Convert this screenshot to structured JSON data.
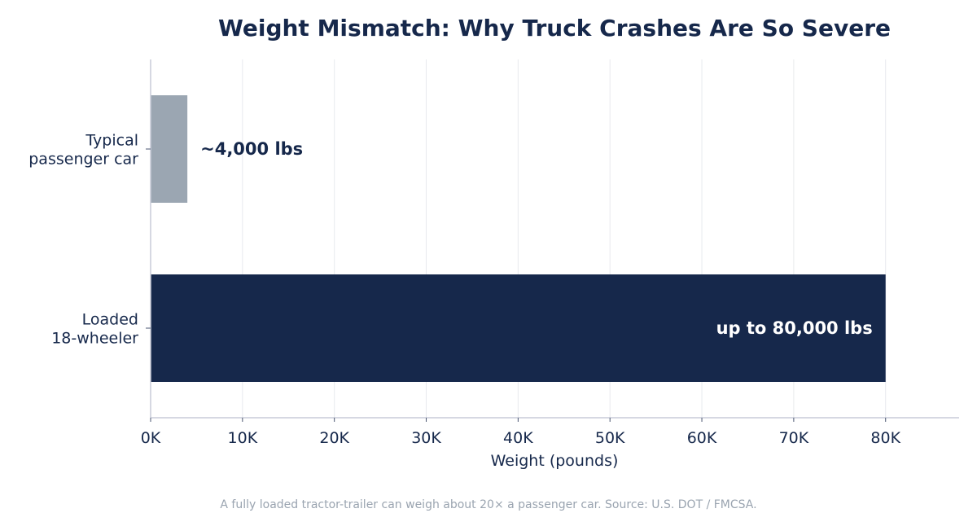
{
  "chart_data": {
    "type": "bar",
    "orientation": "horizontal",
    "title": "Weight Mismatch: Why Truck Crashes Are So Severe",
    "xlabel": "Weight (pounds)",
    "ylabel": "",
    "xlim": [
      0,
      88000
    ],
    "x_ticks": [
      0,
      10000,
      20000,
      30000,
      40000,
      50000,
      60000,
      70000,
      80000
    ],
    "x_tick_labels": [
      "0K",
      "10K",
      "20K",
      "30K",
      "40K",
      "50K",
      "60K",
      "70K",
      "80K"
    ],
    "grid": true,
    "categories": [
      [
        "Typical",
        "passenger car"
      ],
      [
        "Loaded",
        "18-wheeler"
      ]
    ],
    "values": [
      4000,
      80000
    ],
    "bar_colors": [
      "#9ba6b2",
      "#16284b"
    ],
    "data_labels": [
      "~4,000 lbs",
      "up to 80,000 lbs"
    ],
    "data_label_colors": [
      "#16284b",
      "#ffffff"
    ],
    "footnote": "A fully loaded tractor-trailer can weigh about 20× a passenger car. Source: U.S. DOT / FMCSA."
  }
}
